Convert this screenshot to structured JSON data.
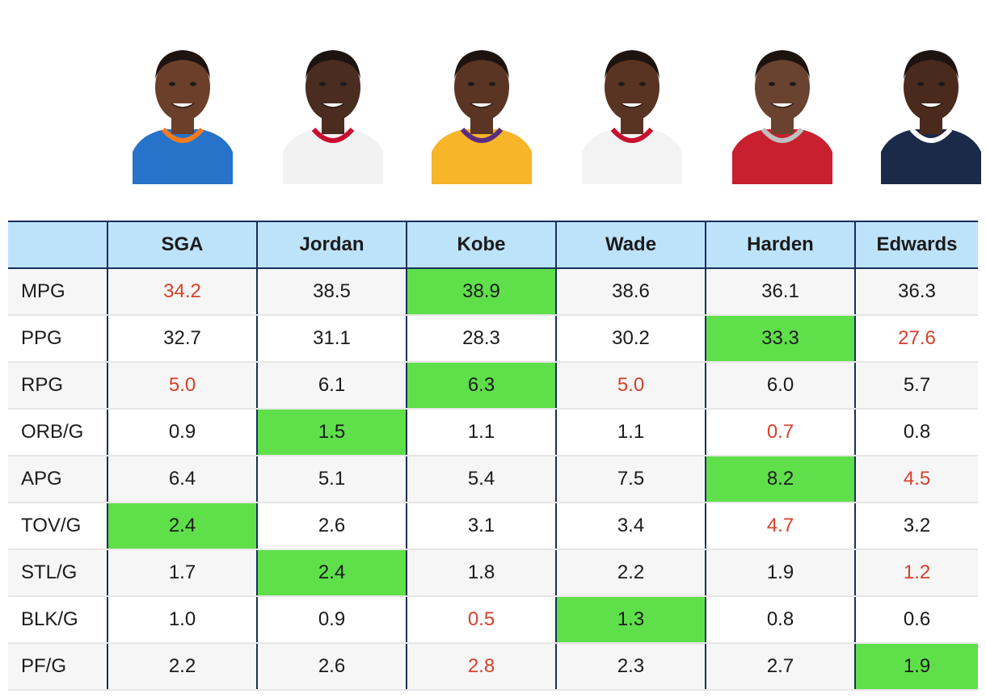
{
  "colors": {
    "header_bg": "#bde3fb",
    "grid_border": "#16305a",
    "best_highlight": "#5fdf4a",
    "worst_text": "#d6402a"
  },
  "players": [
    {
      "name": "SGA",
      "jersey_color": "#2673c9",
      "trim_color": "#f47b20",
      "skin": "#6b3f2a"
    },
    {
      "name": "Jordan",
      "jersey_color": "#f2f2f2",
      "trim_color": "#c8102e",
      "skin": "#4a2c20"
    },
    {
      "name": "Kobe",
      "jersey_color": "#f7b52a",
      "trim_color": "#5a2d82",
      "skin": "#5b3524"
    },
    {
      "name": "Wade",
      "jersey_color": "#f3f3f3",
      "trim_color": "#c8102e",
      "skin": "#5a3422"
    },
    {
      "name": "Harden",
      "jersey_color": "#c8202e",
      "trim_color": "#bfbfbf",
      "skin": "#6a4230"
    },
    {
      "name": "Edwards",
      "jersey_color": "#1c2a4a",
      "trim_color": "#ffffff",
      "skin": "#4a2a1d"
    }
  ],
  "table": {
    "corner": "",
    "headers": [
      "SGA",
      "Jordan",
      "Kobe",
      "Wade",
      "Harden",
      "Edwards"
    ],
    "rows": [
      {
        "label": "MPG",
        "values": [
          "34.2",
          "38.5",
          "38.9",
          "38.6",
          "36.1",
          "36.3"
        ],
        "best": 2,
        "worst": [
          0
        ]
      },
      {
        "label": "PPG",
        "values": [
          "32.7",
          "31.1",
          "28.3",
          "30.2",
          "33.3",
          "27.6"
        ],
        "best": 4,
        "worst": [
          5
        ]
      },
      {
        "label": "RPG",
        "values": [
          "5.0",
          "6.1",
          "6.3",
          "5.0",
          "6.0",
          "5.7"
        ],
        "best": 2,
        "worst": [
          0,
          3
        ]
      },
      {
        "label": "ORB/G",
        "values": [
          "0.9",
          "1.5",
          "1.1",
          "1.1",
          "0.7",
          "0.8"
        ],
        "best": 1,
        "worst": [
          4
        ]
      },
      {
        "label": "APG",
        "values": [
          "6.4",
          "5.1",
          "5.4",
          "7.5",
          "8.2",
          "4.5"
        ],
        "best": 4,
        "worst": [
          5
        ]
      },
      {
        "label": "TOV/G",
        "values": [
          "2.4",
          "2.6",
          "3.1",
          "3.4",
          "4.7",
          "3.2"
        ],
        "best": 0,
        "worst": [
          4
        ]
      },
      {
        "label": "STL/G",
        "values": [
          "1.7",
          "2.4",
          "1.8",
          "2.2",
          "1.9",
          "1.2"
        ],
        "best": 1,
        "worst": [
          5
        ]
      },
      {
        "label": "BLK/G",
        "values": [
          "1.0",
          "0.9",
          "0.5",
          "1.3",
          "0.8",
          "0.6"
        ],
        "best": 3,
        "worst": [
          2
        ]
      },
      {
        "label": "PF/G",
        "values": [
          "2.2",
          "2.6",
          "2.8",
          "2.3",
          "2.7",
          "1.9"
        ],
        "best": 5,
        "worst": [
          2
        ]
      }
    ]
  }
}
